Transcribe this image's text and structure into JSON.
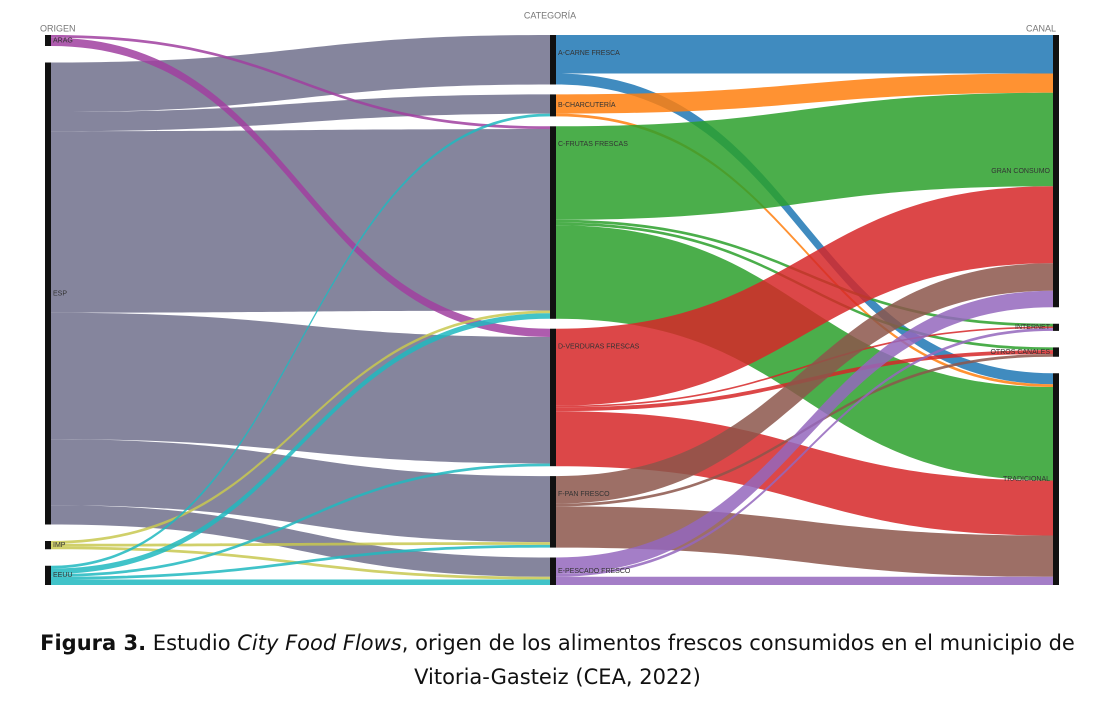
{
  "chart_data": {
    "type": "sankey",
    "column_titles": [
      "ORIGEN",
      "CATEGORÍA",
      "CANAL"
    ],
    "nodes": [
      {
        "name": "ARAG",
        "column": 0,
        "color": "#a040a0"
      },
      {
        "name": "ESP",
        "column": 0,
        "color": "#70708c"
      },
      {
        "name": "IMP",
        "column": 0,
        "color": "#c8c850"
      },
      {
        "name": "EEUU",
        "column": 0,
        "color": "#20b8c0"
      },
      {
        "name": "A-CARNE FRESCA",
        "column": 1,
        "color": "#1f77b4"
      },
      {
        "name": "B-CHARCUTERÍA",
        "column": 1,
        "color": "#ff7f0e"
      },
      {
        "name": "C-FRUTAS FRESCAS",
        "column": 1,
        "color": "#2ca02c"
      },
      {
        "name": "D-VERDURAS FRESCAS",
        "column": 1,
        "color": "#d62728"
      },
      {
        "name": "F-PAN FRESCO",
        "column": 1,
        "color": "#8c564b"
      },
      {
        "name": "E-PESCADO FRESCO",
        "column": 1,
        "color": "#9467bd"
      },
      {
        "name": "GRAN CONSUMO",
        "column": 2,
        "color": "#222222"
      },
      {
        "name": "INTERNET",
        "column": 2,
        "color": "#222222"
      },
      {
        "name": "OTROS CANALES",
        "column": 2,
        "color": "#222222"
      },
      {
        "name": "TRADICIONAL",
        "column": 2,
        "color": "#222222"
      }
    ],
    "links": [
      {
        "source": 1,
        "target": 4,
        "value": 9
      },
      {
        "source": 1,
        "target": 5,
        "value": 3.5
      },
      {
        "source": 1,
        "target": 6,
        "value": 33
      },
      {
        "source": 1,
        "target": 7,
        "value": 23
      },
      {
        "source": 1,
        "target": 8,
        "value": 12
      },
      {
        "source": 1,
        "target": 9,
        "value": 3.5
      },
      {
        "source": 0,
        "target": 7,
        "value": 1.5
      },
      {
        "source": 0,
        "target": 6,
        "value": 0.5
      },
      {
        "source": 2,
        "target": 8,
        "value": 0.5
      },
      {
        "source": 2,
        "target": 9,
        "value": 0.5
      },
      {
        "source": 2,
        "target": 6,
        "value": 0.5
      },
      {
        "source": 3,
        "target": 5,
        "value": 0.5
      },
      {
        "source": 3,
        "target": 7,
        "value": 0.5
      },
      {
        "source": 3,
        "target": 8,
        "value": 0.5
      },
      {
        "source": 3,
        "target": 9,
        "value": 1
      },
      {
        "source": 3,
        "target": 6,
        "value": 1
      },
      {
        "source": 4,
        "target": 10,
        "value": 7
      },
      {
        "source": 4,
        "target": 13,
        "value": 2
      },
      {
        "source": 5,
        "target": 10,
        "value": 3.5
      },
      {
        "source": 5,
        "target": 13,
        "value": 0.5
      },
      {
        "source": 6,
        "target": 10,
        "value": 17
      },
      {
        "source": 6,
        "target": 11,
        "value": 0.5
      },
      {
        "source": 6,
        "target": 12,
        "value": 0.5
      },
      {
        "source": 6,
        "target": 13,
        "value": 17
      },
      {
        "source": 7,
        "target": 10,
        "value": 14
      },
      {
        "source": 7,
        "target": 11,
        "value": 0.3
      },
      {
        "source": 7,
        "target": 12,
        "value": 0.7
      },
      {
        "source": 7,
        "target": 13,
        "value": 10
      },
      {
        "source": 8,
        "target": 10,
        "value": 5
      },
      {
        "source": 8,
        "target": 12,
        "value": 0.5
      },
      {
        "source": 8,
        "target": 13,
        "value": 7.5
      },
      {
        "source": 9,
        "target": 10,
        "value": 3
      },
      {
        "source": 9,
        "target": 11,
        "value": 0.5
      },
      {
        "source": 9,
        "target": 13,
        "value": 1.5
      }
    ]
  },
  "caption": {
    "label": "Figura 3.",
    "text_before": "Estudio",
    "italic": "City Food Flows",
    "text_after": ", origen de los alimentos frescos consumidos en el municipio de Vitoria-Gasteiz (CEA, 2022)"
  }
}
